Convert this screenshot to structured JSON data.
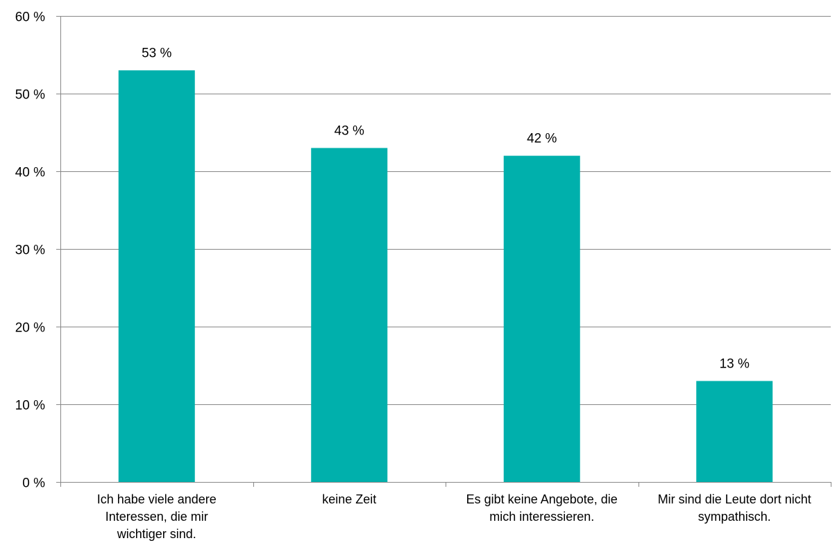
{
  "chart_data": {
    "type": "bar",
    "title": "",
    "xlabel": "",
    "ylabel": "",
    "categories": [
      "Ich habe viele andere Interessen, die mir wichtiger sind.",
      "keine Zeit",
      "Es gibt keine Angebote, die mich interessieren.",
      "Mir sind die Leute dort nicht sympathisch."
    ],
    "category_lines": [
      [
        "Ich habe viele andere",
        "Interessen, die mir",
        "wichtiger sind."
      ],
      [
        "keine Zeit"
      ],
      [
        "Es gibt keine Angebote, die",
        "mich interessieren."
      ],
      [
        "Mir sind die Leute dort nicht",
        "sympathisch."
      ]
    ],
    "values": [
      53,
      43,
      42,
      13
    ],
    "data_labels": [
      "53 %",
      "43 %",
      "42 %",
      "13 %"
    ],
    "y_ticks": [
      0,
      10,
      20,
      30,
      40,
      50,
      60
    ],
    "y_tick_labels": [
      "0 %",
      "10 %",
      "20 %",
      "30 %",
      "40 %",
      "50 %",
      "60 %"
    ],
    "ylim": [
      0,
      60
    ],
    "grid": true,
    "legend": "none",
    "bar_color": "#00B0AC",
    "grid_color": "#878787"
  }
}
